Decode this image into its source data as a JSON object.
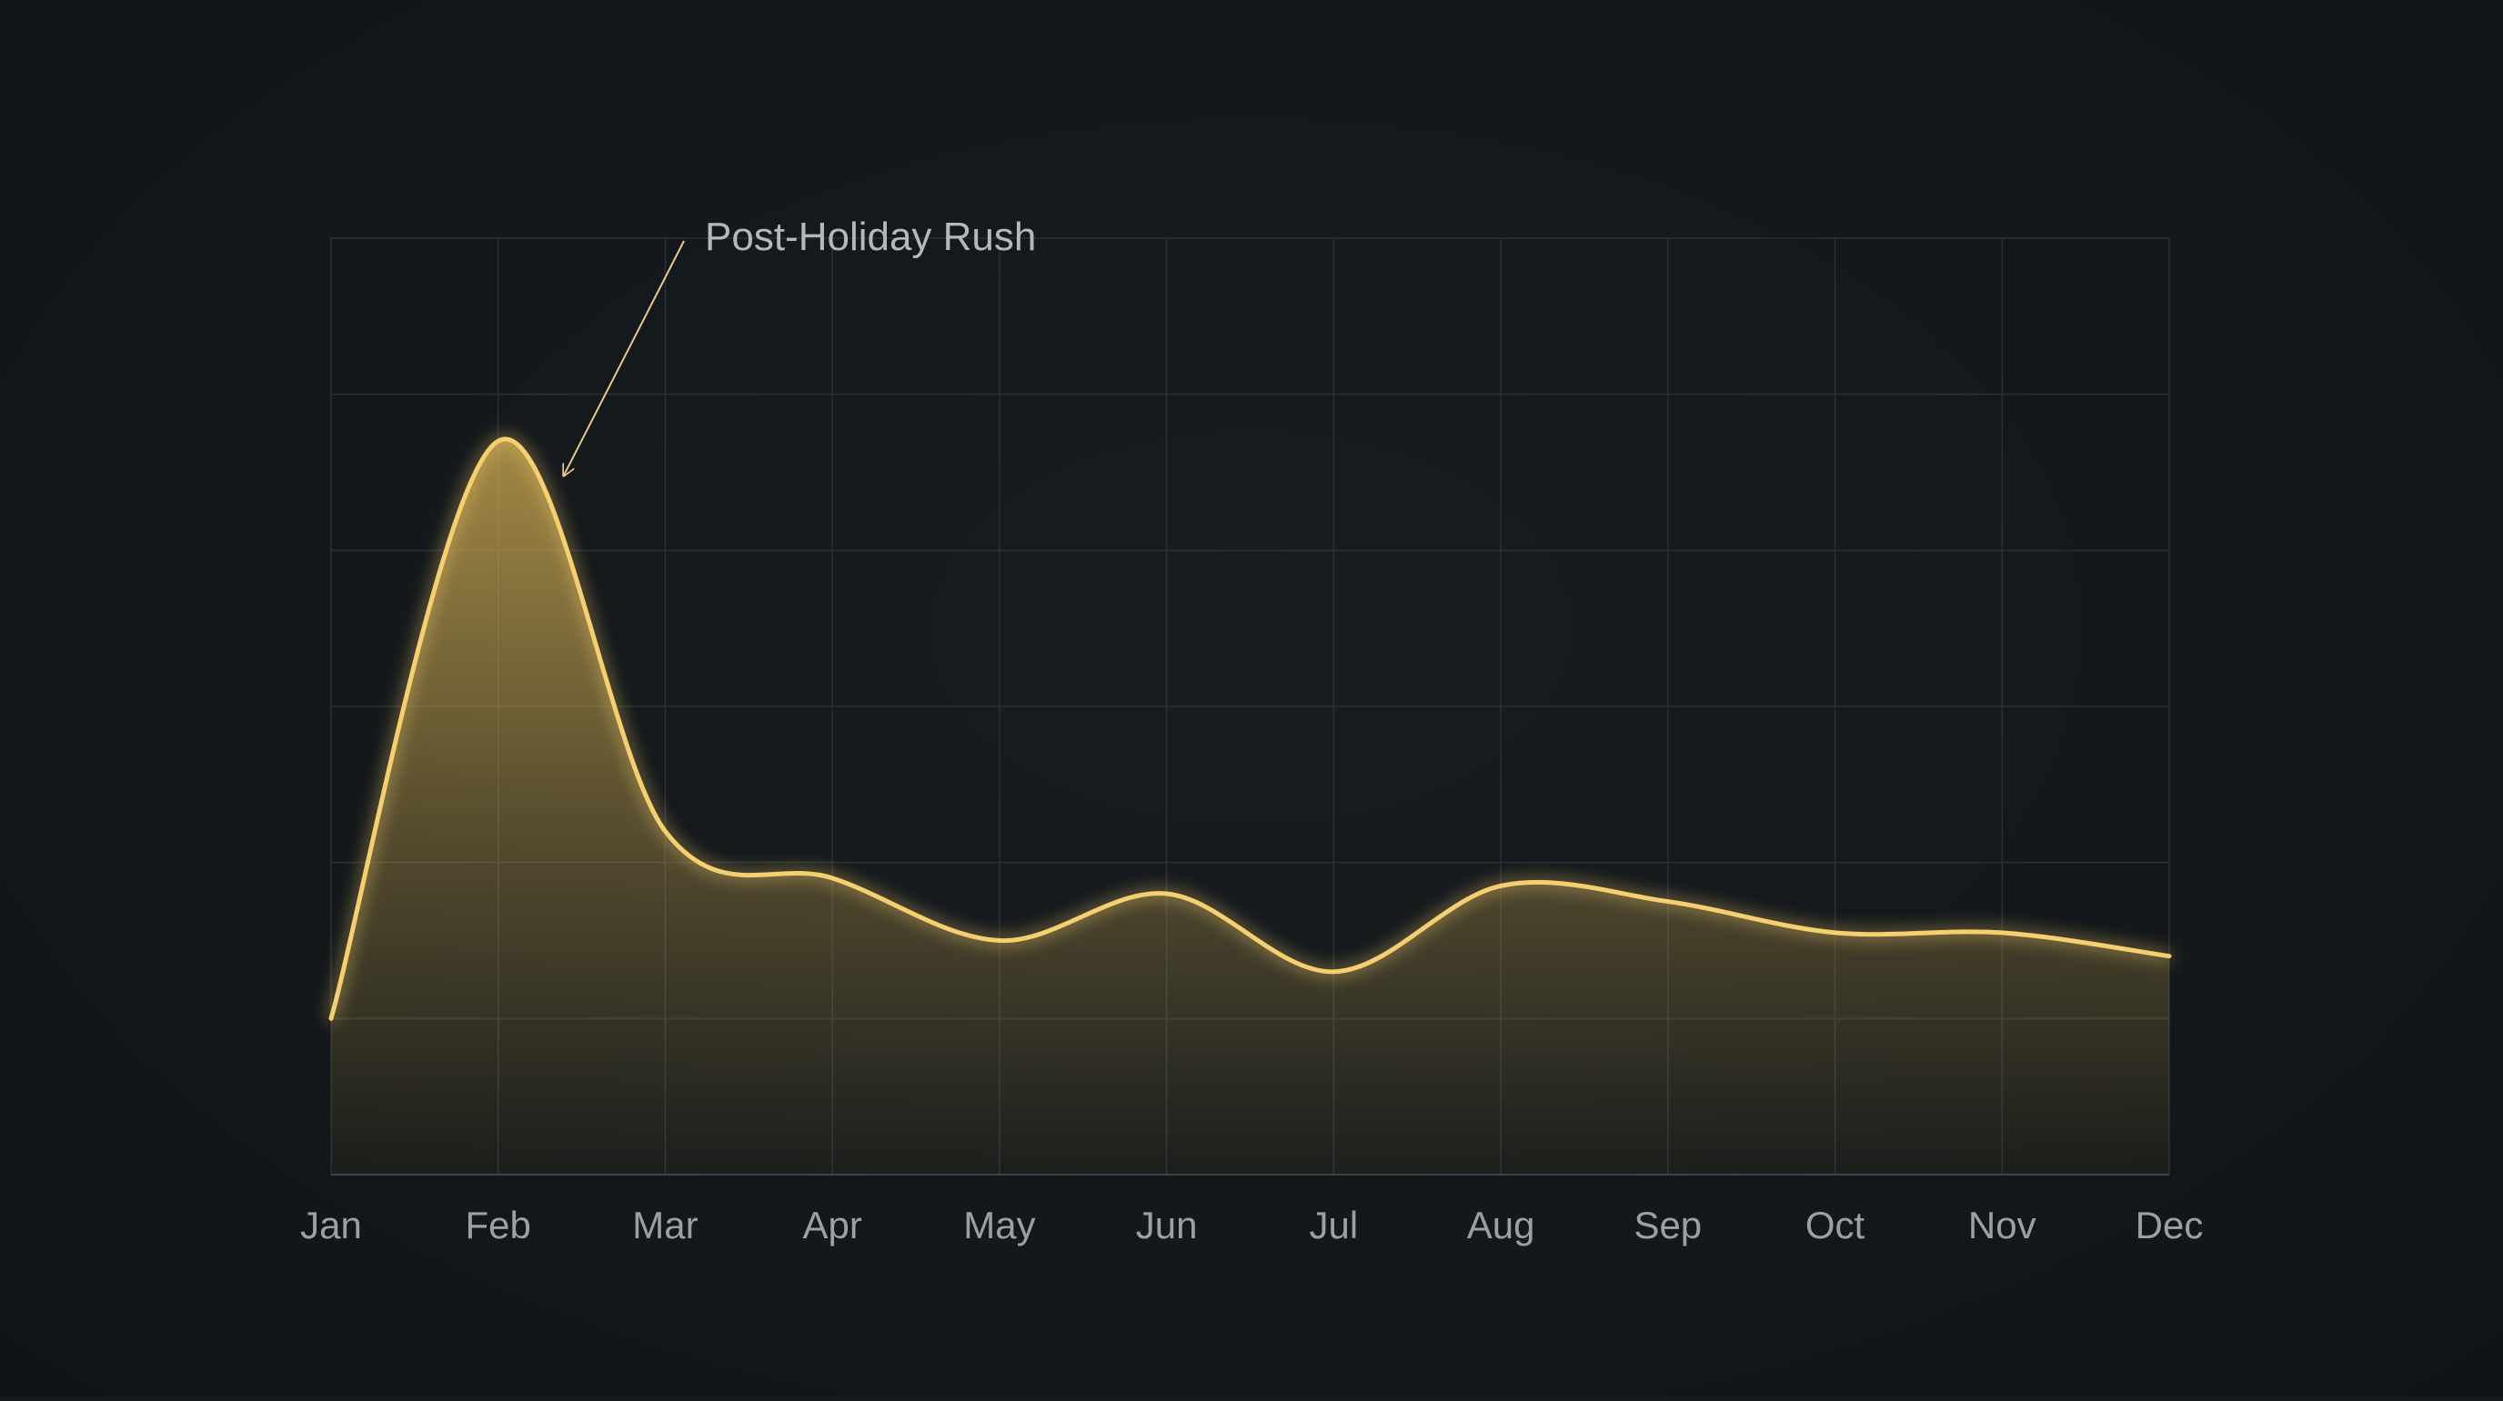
{
  "chart_data": {
    "type": "area",
    "title": "",
    "xlabel": "",
    "ylabel": "",
    "categories": [
      "Jan",
      "Feb",
      "Mar",
      "Apr",
      "May",
      "Jun",
      "Jul",
      "Aug",
      "Sep",
      "Oct",
      "Nov",
      "Dec"
    ],
    "series": [
      {
        "values": [
          1.0,
          4.7,
          2.2,
          1.9,
          1.5,
          1.8,
          1.3,
          1.85,
          1.75,
          1.55,
          1.55,
          1.4
        ]
      }
    ],
    "ylim": [
      0,
      6
    ],
    "grid": true,
    "colors": {
      "background": "#14181b",
      "line": "#f6cf6e",
      "fill": "#d9b354",
      "grid": "#2a3036",
      "axis_text": "#9aa0a6",
      "annotation_text": "#b5b8bb",
      "annotation_arrow": "#e8c98a"
    },
    "annotations": [
      {
        "text": "Post-Holiday Rush",
        "target_category": "Feb"
      }
    ]
  }
}
